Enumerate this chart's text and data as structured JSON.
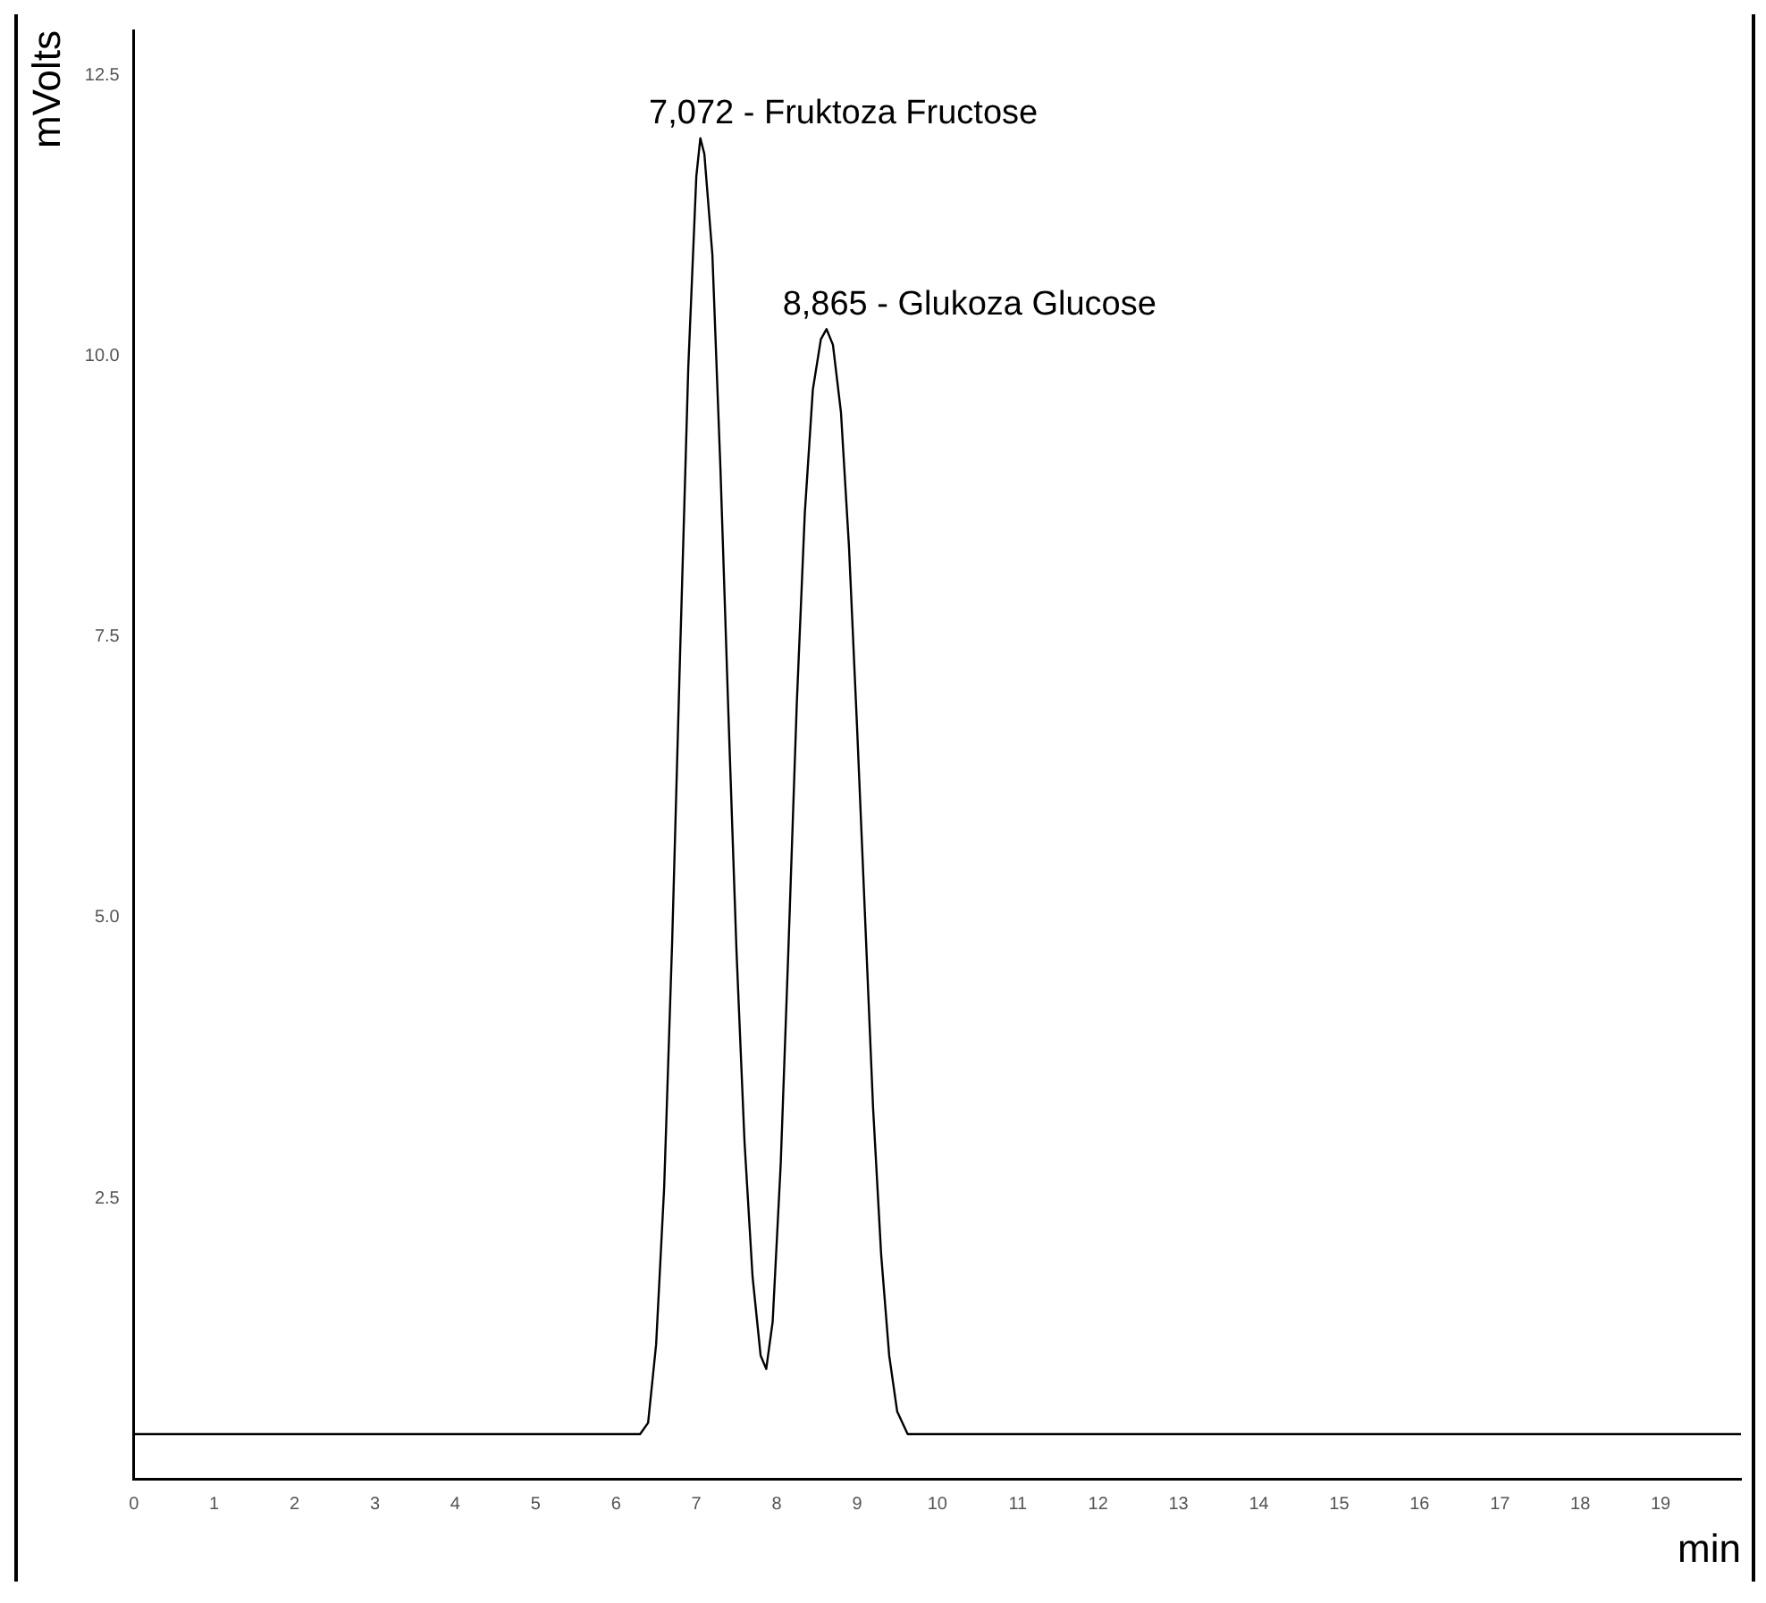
{
  "chart_data": {
    "type": "line",
    "xlabel": "min",
    "ylabel": "mVolts",
    "series": [
      {
        "color": "#000000",
        "x": [
          0,
          6.3,
          6.4,
          6.5,
          6.6,
          6.7,
          6.8,
          6.9,
          7.0,
          7.05,
          7.1,
          7.2,
          7.3,
          7.4,
          7.5,
          7.6,
          7.7,
          7.8,
          7.87,
          7.95,
          8.05,
          8.15,
          8.25,
          8.35,
          8.45,
          8.55,
          8.62,
          8.7,
          8.8,
          8.9,
          9.0,
          9.1,
          9.2,
          9.3,
          9.4,
          9.5,
          9.63,
          20
        ],
        "values": [
          0.4,
          0.4,
          0.5,
          1.2,
          2.6,
          4.8,
          7.4,
          9.9,
          11.6,
          11.94,
          11.8,
          10.9,
          9.0,
          6.8,
          4.7,
          3.0,
          1.8,
          1.1,
          0.98,
          1.4,
          2.8,
          4.8,
          6.9,
          8.6,
          9.7,
          10.15,
          10.24,
          10.1,
          9.5,
          8.3,
          6.7,
          5.0,
          3.3,
          2.0,
          1.1,
          0.6,
          0.4,
          0.4
        ]
      }
    ],
    "xlim": [
      0,
      20
    ],
    "xticks": [
      0,
      1,
      2,
      3,
      4,
      5,
      6,
      7,
      8,
      9,
      10,
      11,
      12,
      13,
      14,
      15,
      16,
      17,
      18,
      19
    ],
    "ylim": [
      0,
      12.9
    ],
    "yticks": [
      2.5,
      {
        "value": 5,
        "label": "5.0"
      },
      7.5,
      {
        "value": 10,
        "label": "10.0"
      },
      12.5
    ],
    "annotations": [
      {
        "text": "7,072 - Fruktoza Fructose",
        "x": 7.05,
        "y": 11.94
      },
      {
        "text": "8,865 - Glukoza Glucose",
        "x": 8.62,
        "y": 10.24
      }
    ],
    "grid": false,
    "legend": false,
    "marker": "none",
    "line_style": "solid"
  }
}
